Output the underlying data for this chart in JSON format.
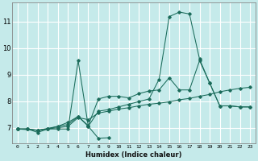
{
  "xlabel": "Humidex (Indice chaleur)",
  "bg_color": "#c5eaea",
  "line_color": "#1a6b5a",
  "grid_color": "#ffffff",
  "xlim": [
    -0.5,
    23.5
  ],
  "ylim": [
    6.4,
    11.7
  ],
  "yticks": [
    7,
    8,
    9,
    10,
    11
  ],
  "xticks": [
    0,
    1,
    2,
    3,
    4,
    5,
    6,
    7,
    8,
    9,
    10,
    11,
    12,
    13,
    14,
    15,
    16,
    17,
    18,
    19,
    20,
    21,
    22,
    23
  ],
  "lines": [
    {
      "x": [
        0,
        1,
        2,
        3,
        4,
        5,
        6,
        7,
        8,
        9
      ],
      "y": [
        6.95,
        6.95,
        6.82,
        6.95,
        6.95,
        6.95,
        9.52,
        7.05,
        6.6,
        6.62
      ]
    },
    {
      "x": [
        0,
        1,
        2,
        3,
        4,
        5,
        6,
        7,
        8,
        9,
        10,
        11,
        12,
        13,
        14,
        15,
        16,
        17,
        18,
        19,
        20,
        21,
        22,
        23
      ],
      "y": [
        6.95,
        6.95,
        6.9,
        6.95,
        7.0,
        7.05,
        7.38,
        7.3,
        7.55,
        7.62,
        7.7,
        7.75,
        7.82,
        7.88,
        7.92,
        7.97,
        8.05,
        8.1,
        8.18,
        8.25,
        8.35,
        8.42,
        8.48,
        8.52
      ]
    },
    {
      "x": [
        0,
        1,
        2,
        3,
        4,
        5,
        6,
        7,
        8,
        9,
        10,
        11,
        12,
        13,
        14,
        15,
        16,
        17,
        18,
        19,
        20,
        21,
        22,
        23
      ],
      "y": [
        6.95,
        6.95,
        6.9,
        6.95,
        7.05,
        7.2,
        7.42,
        7.05,
        7.62,
        7.68,
        7.78,
        7.88,
        7.98,
        8.08,
        8.82,
        11.18,
        11.35,
        11.28,
        9.58,
        8.68,
        7.82,
        7.82,
        7.78,
        7.78
      ]
    },
    {
      "x": [
        0,
        2,
        5,
        6,
        7,
        8,
        9,
        10,
        11,
        12,
        13,
        14,
        15,
        16,
        17,
        18,
        19,
        20,
        21,
        22,
        23
      ],
      "y": [
        6.95,
        6.9,
        7.12,
        7.42,
        7.08,
        8.08,
        8.18,
        8.18,
        8.12,
        8.28,
        8.38,
        8.42,
        8.88,
        8.42,
        8.42,
        9.52,
        8.68,
        7.82,
        7.82,
        7.78,
        7.78
      ]
    }
  ]
}
